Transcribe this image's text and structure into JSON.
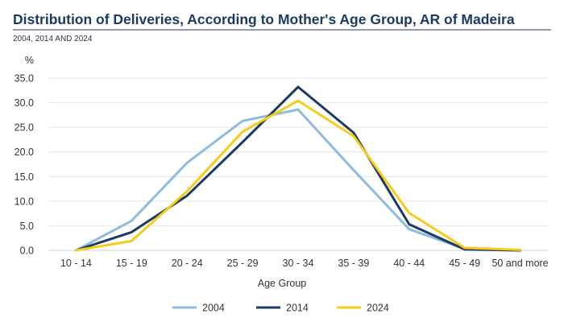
{
  "chart_data": {
    "type": "line",
    "title": "Distribution of Deliveries, According to Mother's Age Group, AR of Madeira",
    "subtitle": "2004, 2014 AND 2024",
    "xlabel": "Age Group",
    "ylabel": "%",
    "ylim": [
      0,
      35
    ],
    "yticks": [
      "0.0",
      "5.0",
      "10.0",
      "15.0",
      "20.0",
      "25.0",
      "30.0",
      "35.0"
    ],
    "grid": true,
    "legend_position": "bottom",
    "categories": [
      "10 - 14",
      "15 - 19",
      "20 - 24",
      "25 - 29",
      "30 - 34",
      "35 - 39",
      "40 - 44",
      "45 - 49",
      "50 and more"
    ],
    "series": [
      {
        "name": "2004",
        "color": "#8fbcdc",
        "values": [
          0.0,
          6.0,
          17.8,
          26.3,
          28.6,
          16.3,
          4.3,
          0.3,
          0.0
        ]
      },
      {
        "name": "2014",
        "color": "#1d3a63",
        "values": [
          0.0,
          3.7,
          11.1,
          22.0,
          33.2,
          23.9,
          5.3,
          0.2,
          0.0
        ]
      },
      {
        "name": "2024",
        "color": "#f5cc1a",
        "values": [
          0.0,
          1.9,
          12.0,
          24.1,
          30.4,
          23.2,
          7.6,
          0.5,
          0.1
        ]
      }
    ]
  }
}
